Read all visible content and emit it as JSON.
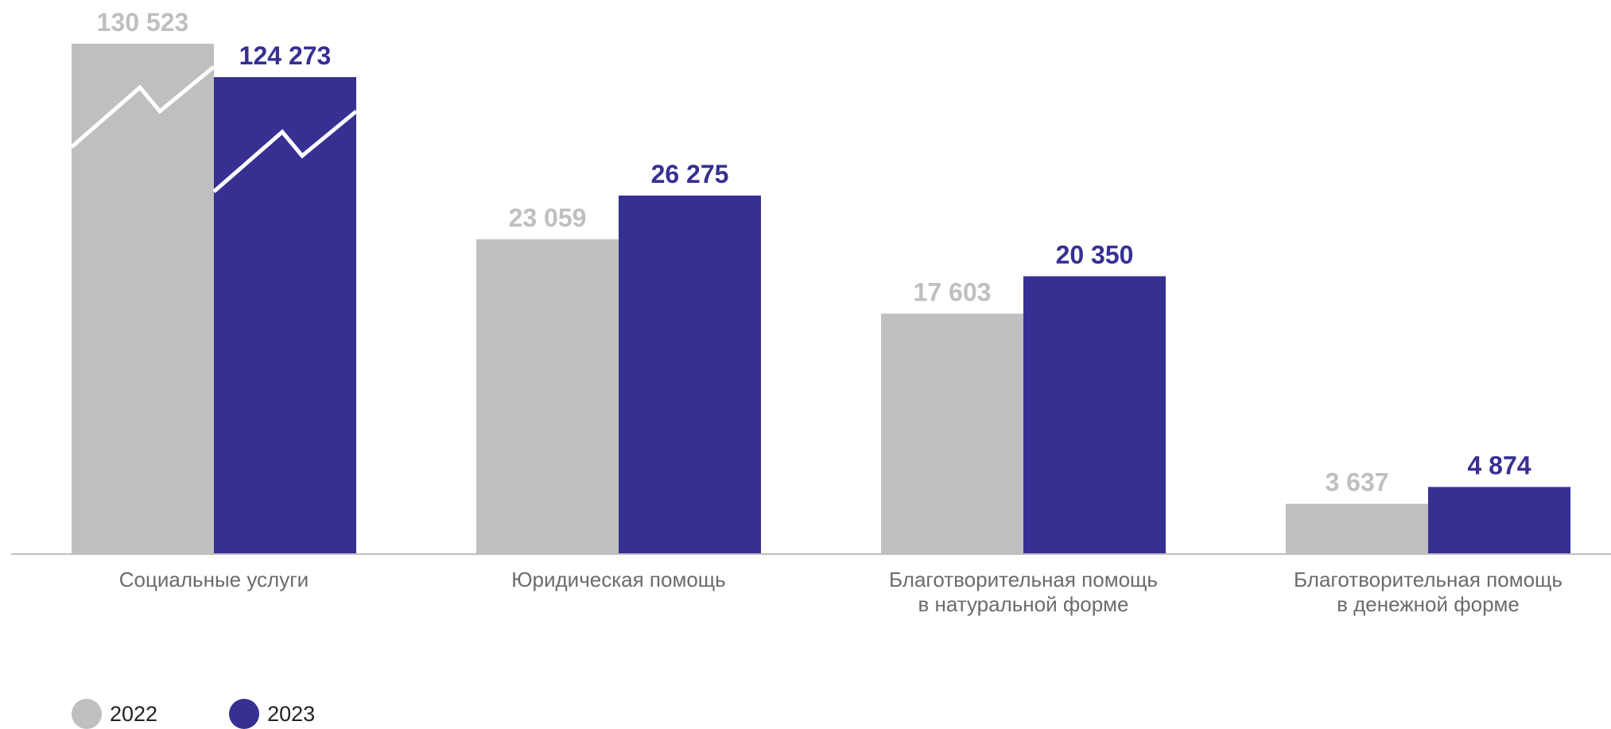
{
  "chart_data": {
    "type": "bar",
    "categories": [
      [
        "Социальные услуги"
      ],
      [
        "Юридическая помощь"
      ],
      [
        "Благотворительная помощь",
        "в натуральной форме"
      ],
      [
        "Благотворительная помощь",
        "в денежной форме"
      ]
    ],
    "series": [
      {
        "name": "2022",
        "color": "#bfbfbf",
        "values": [
          130523,
          23059,
          17603,
          3637
        ],
        "value_labels": [
          "130 523",
          "23 059",
          "17 603",
          "3 637"
        ]
      },
      {
        "name": "2023",
        "color": "#363093",
        "values": [
          124273,
          26275,
          20350,
          4874
        ],
        "value_labels": [
          "124 273",
          "26 275",
          "20 350",
          "4 874"
        ]
      }
    ],
    "axis_break": {
      "category": "Социальные услуги",
      "marker": "zigzag"
    },
    "grid": false,
    "legend_position": "bottom-left"
  },
  "legend": [
    {
      "label": "2022",
      "color": "#bfbfbf"
    },
    {
      "label": "2023",
      "color": "#363093"
    }
  ]
}
